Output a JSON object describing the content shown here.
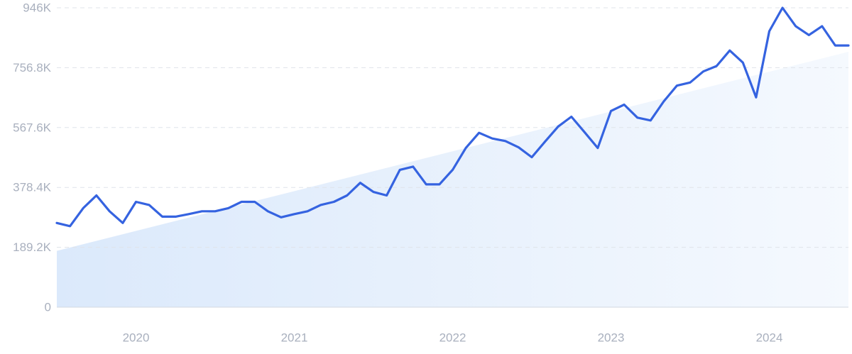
{
  "chart_data": {
    "type": "line",
    "yticks": [
      {
        "value": 0,
        "label": "0"
      },
      {
        "value": 189200,
        "label": "189.2K"
      },
      {
        "value": 378400,
        "label": "378.4K"
      },
      {
        "value": 567600,
        "label": "567.6K"
      },
      {
        "value": 756800,
        "label": "756.8K"
      },
      {
        "value": 946000,
        "label": "946K"
      }
    ],
    "xticks": [
      {
        "value": "2020-01",
        "label": "2020"
      },
      {
        "value": "2021-01",
        "label": "2021"
      },
      {
        "value": "2022-01",
        "label": "2022"
      },
      {
        "value": "2023-01",
        "label": "2023"
      },
      {
        "value": "2024-01",
        "label": "2024"
      }
    ],
    "xlim": [
      "2019-07",
      "2024-07"
    ],
    "ylim": [
      0,
      946000
    ],
    "grid": true,
    "colors": {
      "line": "#3563e0",
      "trend_fill_start": "#dbe9fb",
      "trend_fill_end": "#f5f9fe",
      "grid": "#dfe3ea",
      "tick_text": "#a9b0be"
    },
    "trend": {
      "x": [
        "2019-07",
        "2024-07"
      ],
      "y": [
        178000,
        807000
      ]
    },
    "series": [
      {
        "x": [
          "2019-07",
          "2019-08",
          "2019-09",
          "2019-10",
          "2019-11",
          "2019-12",
          "2020-01",
          "2020-02",
          "2020-03",
          "2020-04",
          "2020-05",
          "2020-06",
          "2020-07",
          "2020-08",
          "2020-09",
          "2020-10",
          "2020-11",
          "2020-12",
          "2021-01",
          "2021-02",
          "2021-03",
          "2021-04",
          "2021-05",
          "2021-06",
          "2021-07",
          "2021-08",
          "2021-09",
          "2021-10",
          "2021-11",
          "2021-12",
          "2022-01",
          "2022-02",
          "2022-03",
          "2022-04",
          "2022-05",
          "2022-06",
          "2022-07",
          "2022-08",
          "2022-09",
          "2022-10",
          "2022-11",
          "2022-12",
          "2023-01",
          "2023-02",
          "2023-03",
          "2023-04",
          "2023-05",
          "2023-06",
          "2023-07",
          "2023-08",
          "2023-09",
          "2023-10",
          "2023-11",
          "2023-12",
          "2024-01",
          "2024-02",
          "2024-03",
          "2024-04",
          "2024-05",
          "2024-06",
          "2024-07"
        ],
        "values": [
          266000,
          256000,
          313000,
          353000,
          303000,
          266000,
          333000,
          323000,
          286000,
          286000,
          294000,
          303000,
          303000,
          313000,
          333000,
          333000,
          303000,
          284000,
          294000,
          303000,
          323000,
          333000,
          353000,
          393000,
          364000,
          353000,
          434000,
          444000,
          388000,
          388000,
          434000,
          503000,
          551000,
          533000,
          525000,
          505000,
          474000,
          523000,
          571000,
          602000,
          553000,
          503000,
          620000,
          640000,
          599000,
          590000,
          650000,
          700000,
          710000,
          745000,
          762000,
          811000,
          773000,
          663000,
          872000,
          946000,
          888000,
          860000,
          888000,
          827000,
          827000
        ]
      }
    ]
  }
}
